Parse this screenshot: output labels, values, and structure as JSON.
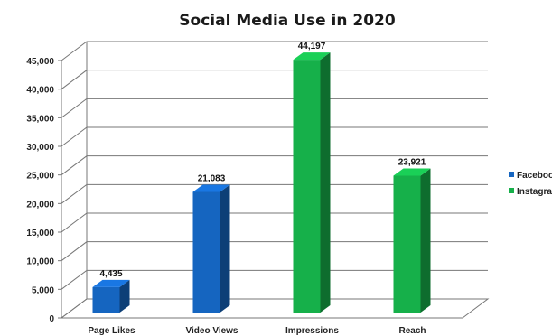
{
  "chart_data": {
    "type": "bar",
    "title": "Social Media Use in 2020",
    "xlabel": "",
    "ylabel": "",
    "ylim": [
      0,
      45000
    ],
    "yticks": [
      0,
      5000,
      10000,
      15000,
      20000,
      25000,
      30000,
      35000,
      40000,
      45000
    ],
    "ytick_labels": [
      "0",
      "5,000",
      "10,000",
      "15,000",
      "20,000",
      "25,000",
      "30,000",
      "35,000",
      "40,000",
      "45,000"
    ],
    "categories": [
      "Page Likes",
      "Video Views",
      "Impressions",
      "Reach"
    ],
    "grid": true,
    "legend_position": "right",
    "series": [
      {
        "name": "Facebook",
        "color": "#1565c0",
        "values": [
          4435,
          21083,
          null,
          null
        ],
        "labels": [
          "4,435",
          "21,083",
          "",
          ""
        ]
      },
      {
        "name": "Instagram",
        "color": "#16b04a",
        "values": [
          null,
          null,
          44197,
          23921
        ],
        "labels": [
          "",
          "",
          "44,197",
          "23,921"
        ]
      }
    ]
  }
}
